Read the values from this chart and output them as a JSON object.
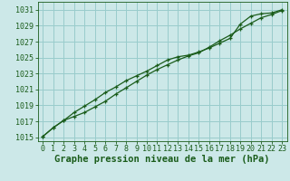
{
  "title": "Graphe pression niveau de la mer (hPa)",
  "bg_color": "#cce8e8",
  "grid_color": "#99cccc",
  "line_color": "#1a5c1a",
  "xlim": [
    -0.5,
    23.5
  ],
  "ylim": [
    1014.5,
    1032.0
  ],
  "yticks": [
    1015,
    1017,
    1019,
    1021,
    1023,
    1025,
    1027,
    1029,
    1031
  ],
  "xticks": [
    0,
    1,
    2,
    3,
    4,
    5,
    6,
    7,
    8,
    9,
    10,
    11,
    12,
    13,
    14,
    15,
    16,
    17,
    18,
    19,
    20,
    21,
    22,
    23
  ],
  "line1_x": [
    0,
    1,
    2,
    3,
    4,
    5,
    6,
    7,
    8,
    9,
    10,
    11,
    12,
    13,
    14,
    15,
    16,
    17,
    18,
    19,
    20,
    21,
    22,
    23
  ],
  "line1_y": [
    1015.1,
    1016.2,
    1017.1,
    1017.6,
    1018.1,
    1018.8,
    1019.5,
    1020.4,
    1021.2,
    1022.0,
    1022.8,
    1023.5,
    1024.1,
    1024.7,
    1025.2,
    1025.6,
    1026.3,
    1027.1,
    1027.8,
    1028.6,
    1029.3,
    1030.0,
    1030.4,
    1030.9
  ],
  "line2_x": [
    0,
    1,
    2,
    3,
    4,
    5,
    6,
    7,
    8,
    9,
    10,
    11,
    12,
    13,
    14,
    15,
    16,
    17,
    18,
    19,
    20,
    21,
    22,
    23
  ],
  "line2_y": [
    1015.1,
    1016.2,
    1017.1,
    1018.1,
    1018.9,
    1019.7,
    1020.6,
    1021.3,
    1022.1,
    1022.7,
    1023.3,
    1024.0,
    1024.7,
    1025.1,
    1025.3,
    1025.7,
    1026.2,
    1026.8,
    1027.4,
    1029.2,
    1030.2,
    1030.5,
    1030.6,
    1031.0
  ],
  "title_fontsize": 7.5,
  "tick_fontsize": 6.0
}
